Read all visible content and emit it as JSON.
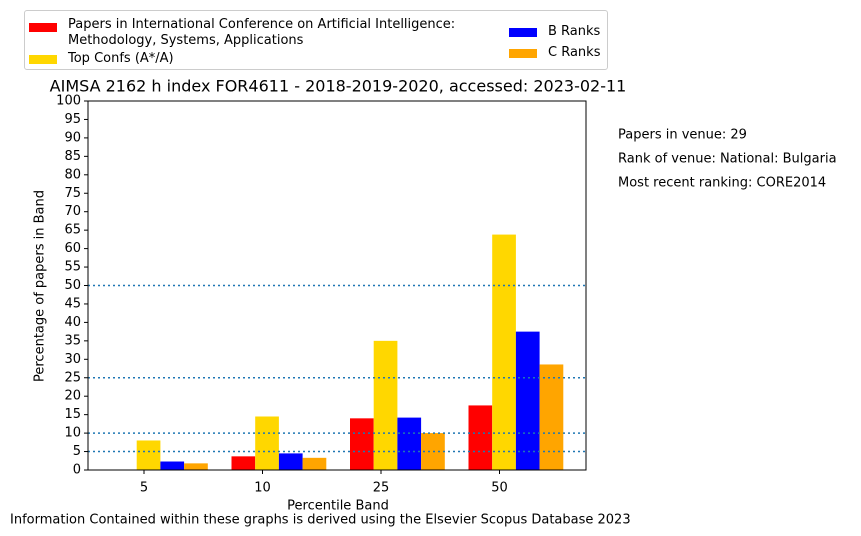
{
  "chart_data": {
    "type": "bar",
    "title": "AIMSA 2162 h index FOR4611 - 2018-2019-2020, accessed: 2023-02-11",
    "xlabel": "Percentile Band",
    "ylabel": "Percentage of papers in Band",
    "categories": [
      "5",
      "10",
      "25",
      "50"
    ],
    "series": [
      {
        "name": "Papers in International Conference on Artificial Intelligence:\nMethodology, Systems, Applications",
        "color": "#ff0000",
        "values": [
          0,
          3.7,
          14,
          17.5
        ]
      },
      {
        "name": "Top Confs (A*/A)",
        "color": "#ffd700",
        "values": [
          8,
          14.5,
          35,
          63.8
        ]
      },
      {
        "name": "B Ranks",
        "color": "#0000ff",
        "values": [
          2.3,
          4.5,
          14.2,
          37.5
        ]
      },
      {
        "name": "C Ranks",
        "color": "#ffa500",
        "values": [
          1.8,
          3.3,
          10,
          28.6
        ]
      }
    ],
    "ylim": [
      0,
      100
    ],
    "yticks": [
      0,
      5,
      10,
      15,
      20,
      25,
      30,
      35,
      40,
      45,
      50,
      55,
      60,
      65,
      70,
      75,
      80,
      85,
      90,
      95,
      100
    ],
    "hlines": [
      5,
      10,
      25,
      50
    ],
    "hline_color": "#1f77b4",
    "annotations": [
      "Papers in venue: 29",
      "Rank of venue: National: Bulgaria",
      "Most recent ranking: CORE2014"
    ],
    "footer": "Information Contained within these graphs is derived using the Elsevier Scopus Database 2023"
  }
}
